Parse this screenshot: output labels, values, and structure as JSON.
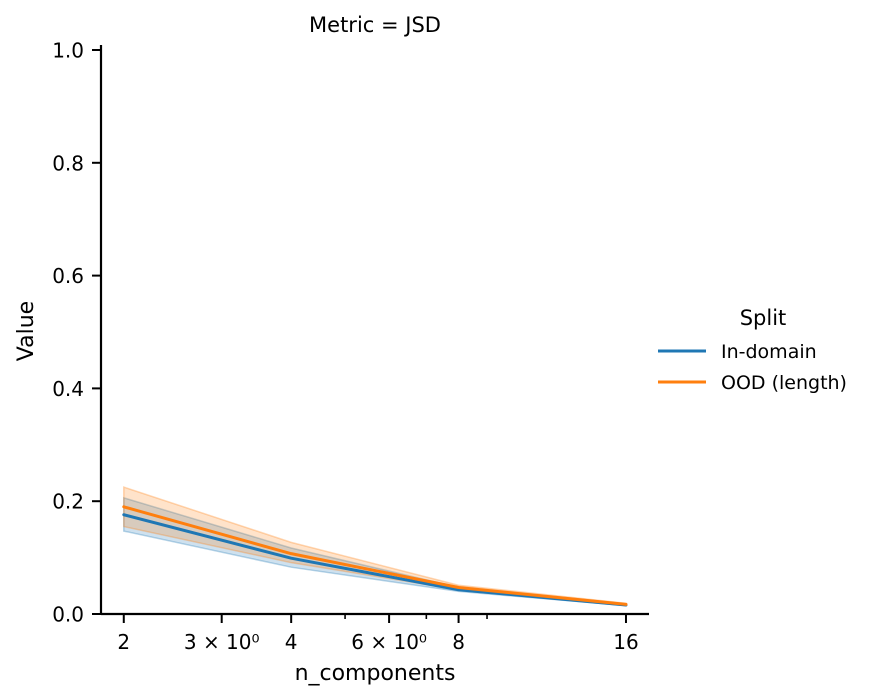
{
  "chart_data": {
    "type": "line",
    "title": "Metric = JSD",
    "xlabel": "n_components",
    "ylabel": "Value",
    "x_scale": "log",
    "x": [
      2,
      4,
      8,
      16
    ],
    "xticks": [
      {
        "value": 2,
        "label": "2"
      },
      {
        "value": 3,
        "label": "3 × 10⁰"
      },
      {
        "value": 4,
        "label": "4"
      },
      {
        "value": 6,
        "label": "6 × 10⁰"
      },
      {
        "value": 8,
        "label": "8"
      },
      {
        "value": 16,
        "label": "16"
      }
    ],
    "x_minor_ticks": [
      5,
      7,
      9
    ],
    "xlim": [
      1.82,
      17.6
    ],
    "ylim": [
      0.0,
      1.0
    ],
    "yticks": [
      "0.0",
      "0.2",
      "0.4",
      "0.6",
      "0.8",
      "1.0"
    ],
    "grid": false,
    "legend": {
      "title": "Split",
      "placement": "right"
    },
    "series": [
      {
        "name": "In-domain",
        "color": "#1f77b4",
        "values": [
          0.176,
          0.099,
          0.043,
          0.016
        ],
        "lower": [
          0.147,
          0.083,
          0.04,
          0.015
        ],
        "upper": [
          0.206,
          0.117,
          0.047,
          0.018
        ]
      },
      {
        "name": "OOD (length)",
        "color": "#ff7f0e",
        "values": [
          0.19,
          0.107,
          0.047,
          0.017
        ],
        "lower": [
          0.155,
          0.091,
          0.043,
          0.015
        ],
        "upper": [
          0.225,
          0.127,
          0.051,
          0.019
        ]
      }
    ]
  }
}
